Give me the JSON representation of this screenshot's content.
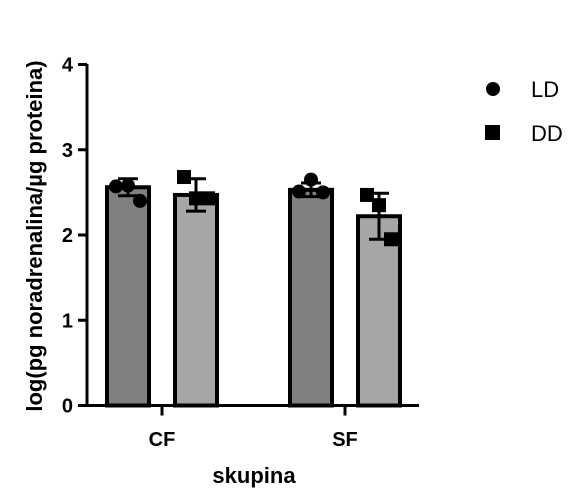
{
  "chart_data": {
    "type": "bar",
    "categories": [
      "CF",
      "SF"
    ],
    "xlabel": "skupina",
    "ylabel": "log(pg noradrenalina/µg proteina)",
    "ylim": [
      0,
      4
    ],
    "yticks": [
      "0",
      "1",
      "2",
      "3",
      "4"
    ],
    "grid": false,
    "legend_position": "right",
    "series": [
      {
        "name": "LD",
        "marker": "circle",
        "color": "#808080",
        "values": [
          2.56,
          2.53
        ],
        "error": [
          0.1,
          0.08
        ],
        "points": [
          [
            2.57,
            2.58,
            2.4
          ],
          [
            2.51,
            2.65,
            2.5
          ]
        ]
      },
      {
        "name": "DD",
        "marker": "square",
        "color": "#a6a6a6",
        "values": [
          2.47,
          2.22
        ],
        "error": [
          0.19,
          0.27
        ],
        "points": [
          [
            2.68,
            2.43,
            2.43
          ],
          [
            2.47,
            2.35,
            1.95
          ]
        ]
      }
    ]
  }
}
